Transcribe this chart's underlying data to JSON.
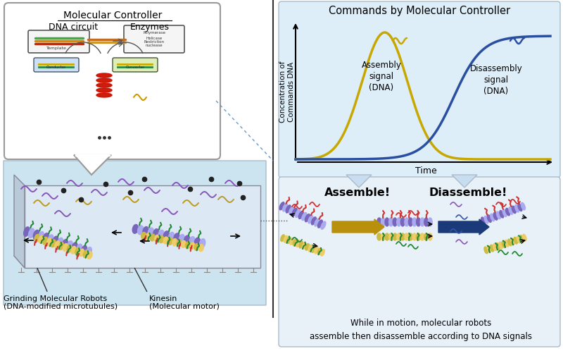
{
  "bg_color": "#ffffff",
  "title": "Commands by Molecular Controller",
  "ylabel": "Concentration of\nCommands DNA",
  "xlabel": "Time",
  "assembly_label": "Assembly\nsignal\n(DNA)",
  "disassembly_label": "Disassembly\nsignal\n(DNA)",
  "assembly_color": "#c8a800",
  "disassembly_color": "#2a4fa0",
  "chart_bg": "#ddeef8",
  "bubble_bg": "#ffffff",
  "bubble_border": "#aaaaaa",
  "mol_controller_title": "Molecular Controller",
  "mol_dna_label": "DNA circuit",
  "mol_enzyme_label": "Enzymes",
  "bottom_left_label1": "Grinding Molecular Robots",
  "bottom_left_label2": "(DNA-modified microtubules)",
  "bottom_right_label1": "Kinesin",
  "bottom_right_label2": "(Molecular motor)",
  "assemble_label": "Assemble!",
  "disassemble_label": "Diassemble!",
  "bottom_text": "While in motion, molecular robots\nassemble then disassemble according to DNA signals",
  "arrow_color_assemble": "#b8900b",
  "arrow_color_disassemble": "#1a3a7a",
  "scene_bg": "#cce4f0",
  "scene_floor": "#c8d4dc",
  "scene_wall": "#dce8f0",
  "mt_color1": "#7766bb",
  "mt_color2": "#aaaaee",
  "mt_yellow1": "#ccbb44",
  "mt_yellow2": "#eecc66",
  "kinesin_color": "#228833",
  "dna_purple": "#8855bb",
  "dna_yellow": "#bb9922",
  "dna_red": "#cc3333",
  "dna_blue": "#3355aa"
}
